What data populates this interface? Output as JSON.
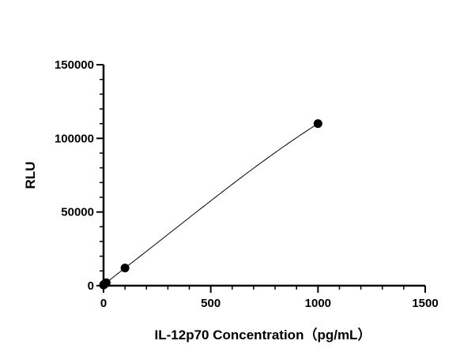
{
  "chart_data": {
    "type": "scatter",
    "title": "",
    "xlabel": "IL-12p70 Concentration（pg/mL）",
    "ylabel": "RLU",
    "xlim": [
      0,
      1500
    ],
    "ylim": [
      0,
      150000
    ],
    "x_ticks": [
      0,
      500,
      1000,
      1500
    ],
    "y_ticks": [
      0,
      50000,
      100000,
      150000
    ],
    "x_tick_labels": [
      "0",
      "500",
      "1000",
      "1500"
    ],
    "y_tick_labels": [
      "0",
      "50000",
      "100000",
      "150000"
    ],
    "grid": false,
    "legend": "none",
    "series": [
      {
        "points": [
          {
            "x": 0,
            "y": 500
          },
          {
            "x": 1.56,
            "y": 700
          },
          {
            "x": 3.13,
            "y": 900
          },
          {
            "x": 6.25,
            "y": 1300
          },
          {
            "x": 12.5,
            "y": 2000
          },
          {
            "x": 100,
            "y": 12000
          },
          {
            "x": 1000,
            "y": 110000
          }
        ],
        "fit": "curve",
        "marker_color": "#000000",
        "line_color": "#000000"
      }
    ]
  }
}
